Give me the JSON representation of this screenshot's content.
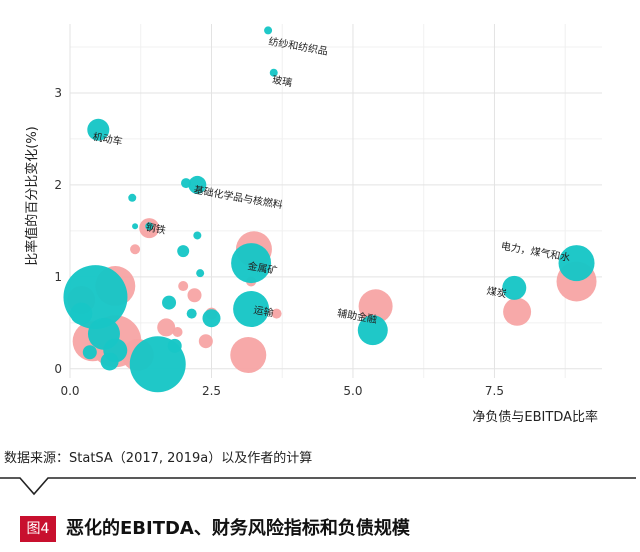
{
  "chart_data": {
    "type": "scatter",
    "xlabel": "净负债与EBITDA比率",
    "ylabel": "比率值的百分比变化(%)",
    "xlim": [
      0,
      9.4
    ],
    "ylim": [
      -0.1,
      3.75
    ],
    "x_ticks": [
      0.0,
      2.5,
      5.0,
      7.5
    ],
    "x_tick_labels": [
      "0.0",
      "2.5",
      "5.0",
      "7.5"
    ],
    "y_ticks": [
      0,
      1,
      2,
      3
    ],
    "y_tick_labels": [
      "0",
      "1",
      "2",
      "3"
    ],
    "grid": true,
    "legend": "none",
    "series": [
      {
        "color": "#f7a4a4",
        "points": [
          {
            "x": 0.8,
            "y": 0.9,
            "size": 20
          },
          {
            "x": 0.4,
            "y": 0.3,
            "size": 20
          },
          {
            "x": 0.8,
            "y": 0.3,
            "size": 26
          },
          {
            "x": 0.2,
            "y": 0.75,
            "size": 14
          },
          {
            "x": 1.2,
            "y": 0.15,
            "size": 16
          },
          {
            "x": 1.4,
            "y": 1.53,
            "size": 10
          },
          {
            "x": 1.15,
            "y": 1.3,
            "size": 5
          },
          {
            "x": 1.7,
            "y": 0.45,
            "size": 9
          },
          {
            "x": 2.2,
            "y": 0.8,
            "size": 7
          },
          {
            "x": 2.5,
            "y": 0.6,
            "size": 6
          },
          {
            "x": 2.4,
            "y": 0.3,
            "size": 7
          },
          {
            "x": 1.9,
            "y": 0.4,
            "size": 5
          },
          {
            "x": 3.25,
            "y": 1.3,
            "size": 18
          },
          {
            "x": 3.15,
            "y": 0.15,
            "size": 18
          },
          {
            "x": 3.65,
            "y": 0.6,
            "size": 5
          },
          {
            "x": 3.2,
            "y": 0.95,
            "size": 5
          },
          {
            "x": 2.0,
            "y": 0.9,
            "size": 5
          },
          {
            "x": 5.4,
            "y": 0.68,
            "size": 17
          },
          {
            "x": 7.9,
            "y": 0.62,
            "size": 14
          },
          {
            "x": 8.95,
            "y": 0.95,
            "size": 20
          }
        ]
      },
      {
        "color": "#18c6c6",
        "points": [
          {
            "x": 3.5,
            "y": 3.68,
            "size": 4,
            "label": "纺纱和纺织品"
          },
          {
            "x": 3.6,
            "y": 3.22,
            "size": 4,
            "label": "玻璃"
          },
          {
            "x": 0.5,
            "y": 2.6,
            "size": 11,
            "label": "机动车"
          },
          {
            "x": 2.25,
            "y": 2.0,
            "size": 9,
            "label": "基础化学品与核燃料"
          },
          {
            "x": 2.05,
            "y": 2.02,
            "size": 5
          },
          {
            "x": 1.1,
            "y": 1.86,
            "size": 4
          },
          {
            "x": 1.4,
            "y": 1.55,
            "size": 4,
            "label": "钢铁"
          },
          {
            "x": 1.15,
            "y": 1.55,
            "size": 3
          },
          {
            "x": 2.25,
            "y": 1.45,
            "size": 4
          },
          {
            "x": 2.0,
            "y": 1.28,
            "size": 6
          },
          {
            "x": 3.2,
            "y": 1.15,
            "size": 20,
            "label": "金属矿"
          },
          {
            "x": 2.3,
            "y": 1.04,
            "size": 4
          },
          {
            "x": 0.45,
            "y": 0.78,
            "size": 32
          },
          {
            "x": 0.2,
            "y": 0.6,
            "size": 11
          },
          {
            "x": 0.6,
            "y": 0.38,
            "size": 16
          },
          {
            "x": 0.8,
            "y": 0.2,
            "size": 12
          },
          {
            "x": 0.35,
            "y": 0.18,
            "size": 7
          },
          {
            "x": 0.7,
            "y": 0.08,
            "size": 9
          },
          {
            "x": 1.55,
            "y": 0.05,
            "size": 28
          },
          {
            "x": 1.75,
            "y": 0.72,
            "size": 7
          },
          {
            "x": 1.85,
            "y": 0.25,
            "size": 7
          },
          {
            "x": 2.15,
            "y": 0.6,
            "size": 5
          },
          {
            "x": 2.5,
            "y": 0.55,
            "size": 9
          },
          {
            "x": 3.2,
            "y": 0.65,
            "size": 18,
            "label": "运输"
          },
          {
            "x": 5.35,
            "y": 0.42,
            "size": 15,
            "label": "辅助金融"
          },
          {
            "x": 7.85,
            "y": 0.88,
            "size": 12,
            "label": "煤炭"
          },
          {
            "x": 8.95,
            "y": 1.15,
            "size": 18,
            "label": "电力，煤气和水"
          }
        ]
      }
    ]
  },
  "source": "数据来源：StatSA（2017, 2019a）以及作者的计算",
  "figure": {
    "badge": "图4",
    "title": "恶化的EBITDA、财务风险指标和负债规模"
  },
  "colors": {
    "accent": "#c8102e",
    "series_a": "#f7a4a4",
    "series_b": "#18c6c6"
  }
}
